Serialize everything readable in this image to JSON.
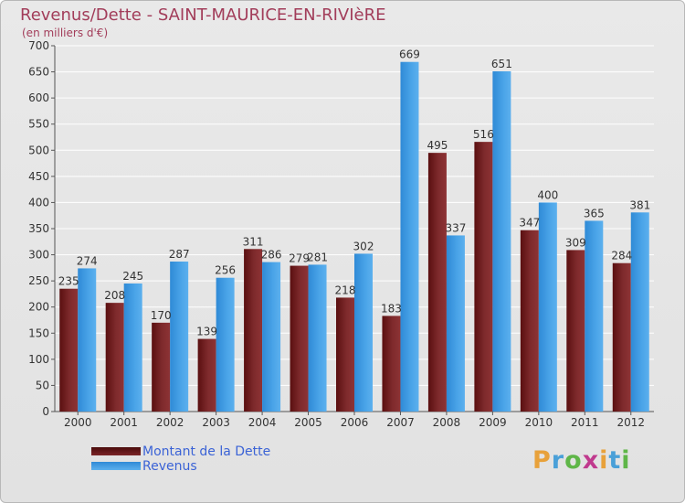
{
  "title": "Revenus/Dette - SAINT-MAURICE-EN-RIVIèRE",
  "subtitle": "(en milliers d'€)",
  "logo": {
    "letters": [
      "P",
      "r",
      "o",
      "x",
      "i",
      "t",
      "i"
    ],
    "colors": [
      "#e8a13a",
      "#4aa0d8",
      "#5fb648",
      "#c03a8e",
      "#e8a13a",
      "#4aa0d8",
      "#5fb648"
    ]
  },
  "legend": [
    {
      "label": "Montant de la Dette",
      "color": "#6e1a1a"
    },
    {
      "label": "Revenus",
      "color": "#3d9ae0"
    }
  ],
  "chart_data": {
    "type": "bar",
    "title": "Revenus/Dette - SAINT-MAURICE-EN-RIVIèRE",
    "ylabel": "(en milliers d'€)",
    "xlabel": "",
    "categories": [
      "2000",
      "2001",
      "2002",
      "2003",
      "2004",
      "2005",
      "2006",
      "2007",
      "2008",
      "2009",
      "2010",
      "2011",
      "2012"
    ],
    "series": [
      {
        "name": "Montant de la Dette",
        "color": "#6e1a1a",
        "values": [
          235,
          208,
          170,
          139,
          311,
          279,
          218,
          183,
          495,
          516,
          347,
          309,
          284
        ]
      },
      {
        "name": "Revenus",
        "color": "#3d9ae0",
        "values": [
          274,
          245,
          287,
          256,
          286,
          281,
          302,
          669,
          337,
          651,
          400,
          365,
          381
        ]
      }
    ],
    "ylim": [
      0,
      700
    ],
    "yticks": [
      0,
      50,
      100,
      150,
      200,
      250,
      300,
      350,
      400,
      450,
      500,
      550,
      600,
      650,
      700
    ],
    "grid": true,
    "legend_position": "bottom-left"
  }
}
